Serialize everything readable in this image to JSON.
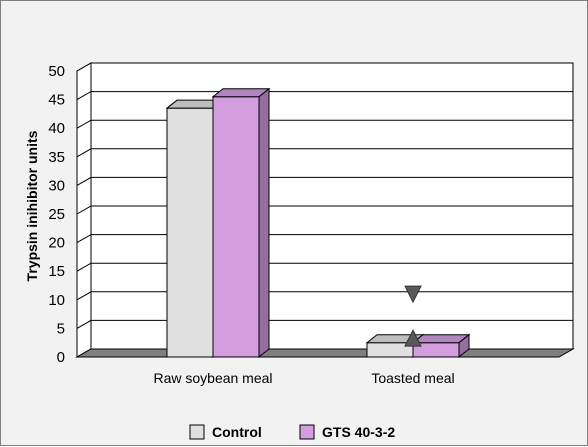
{
  "chart_data": {
    "type": "bar",
    "title": "",
    "ylabel": "Trypsin inihibitor units",
    "xlabel": "",
    "categories": [
      "Raw soybean meal",
      "Toasted meal"
    ],
    "series": [
      {
        "name": "Control",
        "values": [
          43.5,
          2.5
        ],
        "color": "#e0e0e0"
      },
      {
        "name": "GTS 40-3-2",
        "values": [
          45.5,
          2.5
        ],
        "color": "#d39ddf"
      }
    ],
    "ylim": [
      0,
      50
    ],
    "yticks": [
      0,
      5,
      10,
      15,
      20,
      25,
      30,
      35,
      40,
      45,
      50
    ],
    "grid": true,
    "three_d": true,
    "legend_position": "bottom",
    "annotations": [
      {
        "symbol": "down-triangle",
        "category": "Toasted meal",
        "y": 11,
        "color": "#595959"
      },
      {
        "symbol": "up-triangle",
        "category": "Toasted meal",
        "y": 3.3,
        "color": "#595959"
      }
    ]
  }
}
